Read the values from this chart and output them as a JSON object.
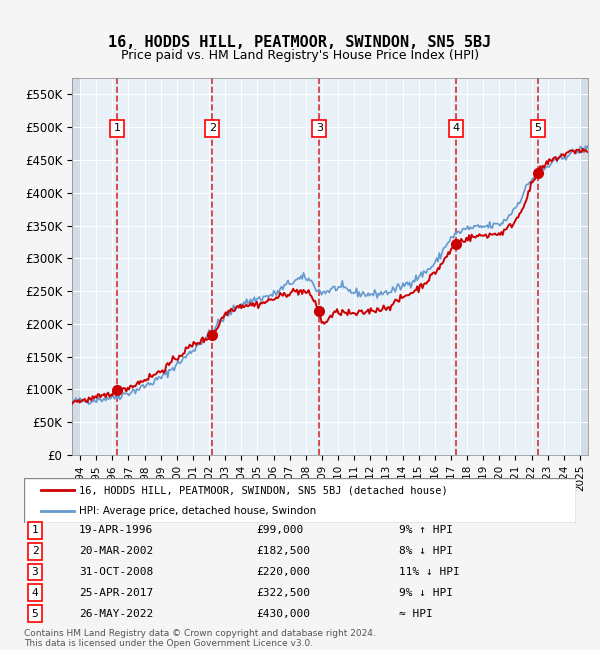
{
  "title": "16, HODDS HILL, PEATMOOR, SWINDON, SN5 5BJ",
  "subtitle": "Price paid vs. HM Land Registry's House Price Index (HPI)",
  "legend_line1": "16, HODDS HILL, PEATMOOR, SWINDON, SN5 5BJ (detached house)",
  "legend_line2": "HPI: Average price, detached house, Swindon",
  "footer1": "Contains HM Land Registry data © Crown copyright and database right 2024.",
  "footer2": "This data is licensed under the Open Government Licence v3.0.",
  "hpi_color": "#6699cc",
  "price_color": "#cc0000",
  "background_color": "#dde8f0",
  "plot_bg_color": "#e8f0f8",
  "grid_color": "#ffffff",
  "hatching_color": "#c0ccd8",
  "ylim": [
    0,
    575000
  ],
  "yticks": [
    0,
    50000,
    100000,
    150000,
    200000,
    250000,
    300000,
    350000,
    400000,
    450000,
    500000,
    550000
  ],
  "ytick_labels": [
    "£0",
    "£50K",
    "£100K",
    "£150K",
    "£200K",
    "£250K",
    "£300K",
    "£350K",
    "£400K",
    "£450K",
    "£500K",
    "£550K"
  ],
  "purchases": [
    {
      "num": 1,
      "date": "19-APR-1996",
      "price": 99000,
      "year": 1996.3,
      "hpi_rel": "9% ↑ HPI"
    },
    {
      "num": 2,
      "date": "20-MAR-2002",
      "price": 182500,
      "year": 2002.2,
      "hpi_rel": "8% ↓ HPI"
    },
    {
      "num": 3,
      "date": "31-OCT-2008",
      "price": 220000,
      "year": 2008.83,
      "hpi_rel": "11% ↓ HPI"
    },
    {
      "num": 4,
      "date": "25-APR-2017",
      "price": 322500,
      "year": 2017.32,
      "hpi_rel": "9% ↓ HPI"
    },
    {
      "num": 5,
      "date": "26-MAY-2022",
      "price": 430000,
      "year": 2022.4,
      "hpi_rel": "≈ HPI"
    }
  ],
  "xmin": 1993.5,
  "xmax": 2025.5,
  "xticks": [
    1994,
    1995,
    1996,
    1997,
    1998,
    1999,
    2000,
    2001,
    2002,
    2003,
    2004,
    2005,
    2006,
    2007,
    2008,
    2009,
    2010,
    2011,
    2012,
    2013,
    2014,
    2015,
    2016,
    2017,
    2018,
    2019,
    2020,
    2021,
    2022,
    2023,
    2024,
    2025
  ]
}
